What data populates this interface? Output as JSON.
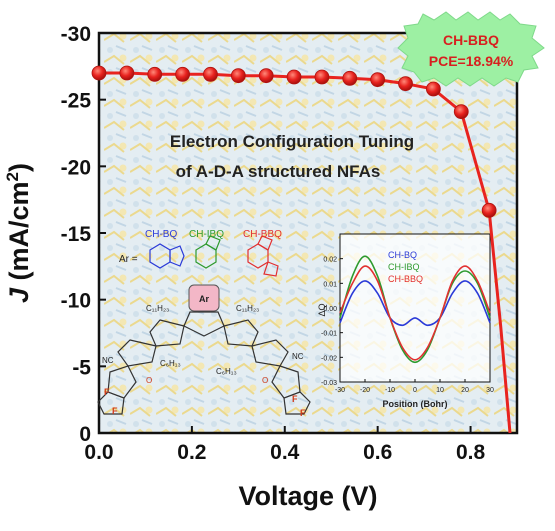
{
  "chart_data": {
    "type": "line",
    "xlabel": "Voltage (V)",
    "ylabel_symbol": "J",
    "ylabel_rest": "(mA/cm",
    "ylabel_sup": "2",
    "ylabel_close": ")",
    "xlim": [
      0,
      0.9
    ],
    "ylim": [
      0,
      -30
    ],
    "xticks": [
      "0.0",
      "0.2",
      "0.4",
      "0.6",
      "0.8"
    ],
    "yticks": [
      "0",
      "-5",
      "-10",
      "-15",
      "-20",
      "-25",
      "-30"
    ],
    "series": [
      {
        "name": "CH-BBQ",
        "color": "#e8231f",
        "x": [
          0.0,
          0.06,
          0.12,
          0.18,
          0.24,
          0.3,
          0.36,
          0.42,
          0.48,
          0.54,
          0.6,
          0.66,
          0.72,
          0.78,
          0.84,
          0.865,
          0.885
        ],
        "y": [
          -27.0,
          -27.0,
          -26.9,
          -26.9,
          -26.9,
          -26.8,
          -26.8,
          -26.7,
          -26.7,
          -26.6,
          -26.5,
          -26.2,
          -25.8,
          -24.1,
          -16.7,
          -8.0,
          0.0
        ],
        "markers_x": [
          0.0,
          0.06,
          0.12,
          0.18,
          0.24,
          0.3,
          0.36,
          0.42,
          0.48,
          0.54,
          0.6,
          0.66,
          0.72,
          0.78,
          0.84
        ],
        "markers_y": [
          -27.0,
          -27.0,
          -26.9,
          -26.9,
          -26.9,
          -26.8,
          -26.8,
          -26.7,
          -26.7,
          -26.6,
          -26.5,
          -26.2,
          -25.8,
          -24.1,
          -16.7
        ]
      }
    ],
    "badge": {
      "line1": "CH-BBQ",
      "line2": "PCE=18.94%"
    },
    "annotation": {
      "line1": "Electron Configuration Tuning",
      "line2": "of A-D-A structured NFAs"
    },
    "molecule": {
      "ar_label": "Ar =",
      "ar_text": "Ar",
      "variants": [
        {
          "name": "CH-BQ",
          "color": "#2b3bd8"
        },
        {
          "name": "CH-IBQ",
          "color": "#2e9a2e"
        },
        {
          "name": "CH-BBQ",
          "color": "#e23030"
        }
      ],
      "labels": [
        "C₁₁H₂₃",
        "C₁₁H₂₃",
        "C₆H₁₃",
        "C₆H₁₃",
        "NC",
        "NC",
        "F",
        "F",
        "F",
        "F",
        "O",
        "O"
      ]
    },
    "inset": {
      "xlabel": "Position (Bohr)",
      "ylabel": "ΔQ",
      "xlim": [
        -30,
        30
      ],
      "ylim": [
        -0.03,
        0.03
      ],
      "xticks": [
        "-30",
        "-20",
        "-10",
        "0",
        "10",
        "20",
        "30"
      ],
      "yticks": [
        "0.02",
        "0.01",
        "0.00",
        "-0.01",
        "-0.02",
        "-0.03"
      ],
      "series": [
        {
          "name": "CH-BQ",
          "color": "#2b3bd8",
          "x": [
            -30,
            -25,
            -20,
            -15,
            -10,
            -5,
            0,
            5,
            10,
            15,
            20,
            25,
            30
          ],
          "y": [
            -0.006,
            0.006,
            0.011,
            0.006,
            -0.004,
            -0.007,
            -0.004,
            -0.007,
            -0.004,
            0.006,
            0.011,
            0.006,
            -0.006
          ]
        },
        {
          "name": "CH-IBQ",
          "color": "#2e9a2e",
          "x": [
            -30,
            -25,
            -20,
            -15,
            -10,
            -5,
            0,
            5,
            10,
            15,
            20,
            25,
            30
          ],
          "y": [
            -0.004,
            0.013,
            0.021,
            0.013,
            -0.004,
            -0.017,
            -0.022,
            -0.017,
            -0.004,
            0.01,
            0.015,
            0.01,
            -0.004
          ]
        },
        {
          "name": "CH-BBQ",
          "color": "#e23030",
          "x": [
            -30,
            -25,
            -20,
            -15,
            -10,
            -5,
            0,
            5,
            10,
            15,
            20,
            25,
            30
          ],
          "y": [
            -0.002,
            0.01,
            0.017,
            0.011,
            -0.004,
            -0.016,
            -0.021,
            -0.016,
            -0.004,
            0.011,
            0.017,
            0.011,
            -0.002
          ]
        }
      ]
    }
  }
}
